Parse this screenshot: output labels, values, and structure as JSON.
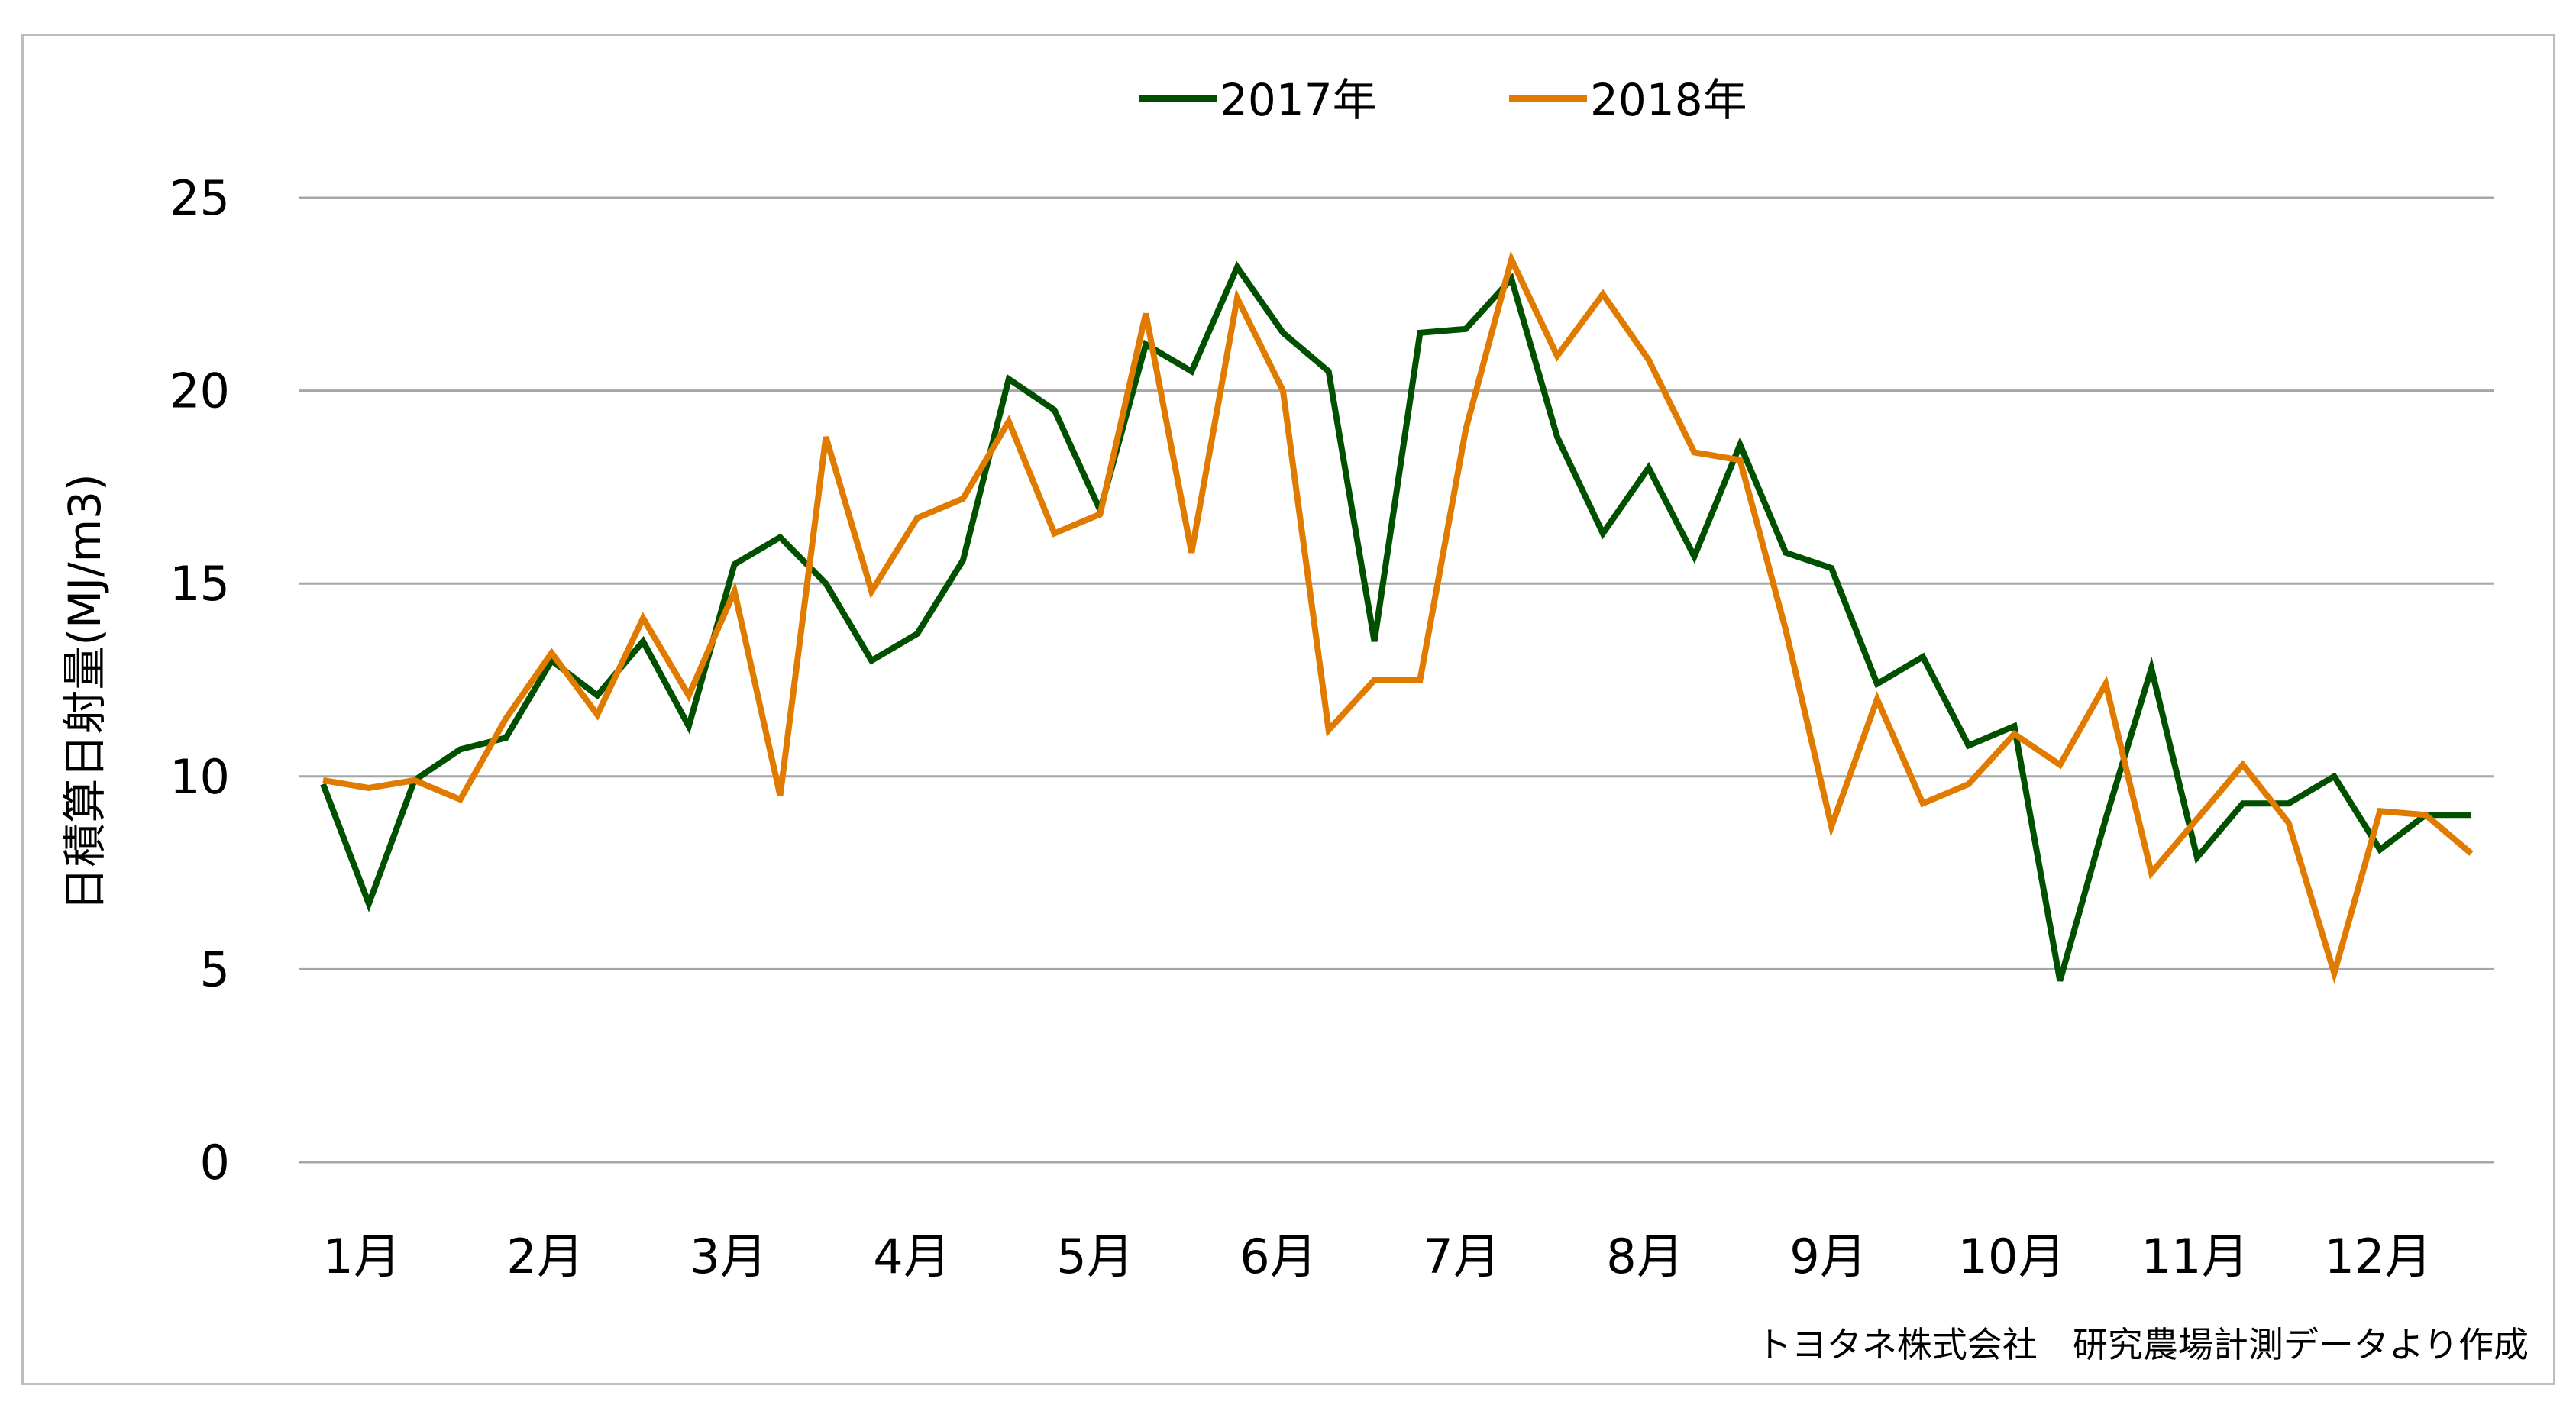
{
  "chart_data": {
    "type": "line",
    "ylabel": "日積算日射量(MJ/m3)",
    "xlabel": "",
    "ylim": [
      0,
      25
    ],
    "yticks": [
      0,
      5,
      10,
      15,
      20,
      25
    ],
    "grid": "horizontal",
    "legend_position": "top",
    "x_tick_labels": [
      "1月",
      "2月",
      "3月",
      "4月",
      "5月",
      "6月",
      "7月",
      "8月",
      "9月",
      "10月",
      "11月",
      "12月"
    ],
    "series": [
      {
        "name": "2017年",
        "color": "#005000",
        "values": [
          9.8,
          6.7,
          9.9,
          10.7,
          11.0,
          13.0,
          12.1,
          13.5,
          11.3,
          15.5,
          16.2,
          15.0,
          13.0,
          13.7,
          15.6,
          20.3,
          19.5,
          16.9,
          21.2,
          20.5,
          23.2,
          21.5,
          20.5,
          13.5,
          21.5,
          21.6,
          22.9,
          18.8,
          16.3,
          18.0,
          15.7,
          18.6,
          15.8,
          15.4,
          12.4,
          13.1,
          10.8,
          11.3,
          4.7,
          8.9,
          12.8,
          7.9,
          9.3,
          9.3,
          10.0,
          8.1,
          9.0,
          9.0
        ]
      },
      {
        "name": "2018年",
        "color": "#e07b00",
        "values": [
          9.9,
          9.7,
          9.9,
          9.4,
          11.5,
          13.2,
          11.6,
          14.1,
          12.1,
          14.8,
          9.5,
          18.8,
          14.8,
          16.7,
          17.2,
          19.2,
          16.3,
          16.8,
          22.0,
          15.8,
          22.4,
          20.0,
          11.2,
          12.5,
          12.5,
          19.0,
          23.4,
          20.9,
          22.5,
          20.8,
          18.4,
          18.2,
          13.8,
          8.7,
          12.0,
          9.3,
          9.8,
          11.1,
          10.3,
          12.4,
          7.5,
          8.9,
          10.3,
          8.8,
          4.9,
          9.1,
          9.0,
          8.0
        ]
      }
    ]
  },
  "footnote": "トヨタネ株式会社　研究農場計測データより作成"
}
